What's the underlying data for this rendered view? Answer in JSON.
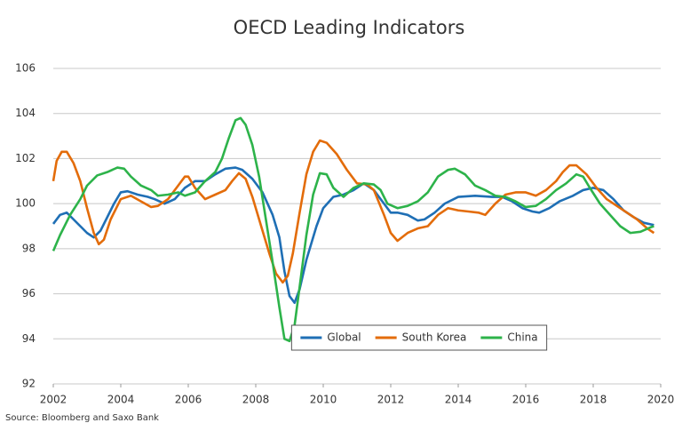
{
  "chart_data": {
    "type": "line",
    "title": "OECD Leading Indicators",
    "source": "Source: Bloomberg and Saxo Bank",
    "xlim": [
      2002,
      2020
    ],
    "xticks": [
      2002,
      2004,
      2006,
      2008,
      2010,
      2012,
      2014,
      2016,
      2018,
      2020
    ],
    "ylim": [
      92,
      106
    ],
    "yticks": [
      92,
      94,
      96,
      98,
      100,
      102,
      104,
      106
    ],
    "grid": true,
    "legend_position": "bottom",
    "series": [
      {
        "name": "Global",
        "color": "#1f6fb5",
        "x": [
          2002.0,
          2002.2,
          2002.4,
          2002.6,
          2002.8,
          2003.0,
          2003.2,
          2003.4,
          2003.6,
          2003.8,
          2004.0,
          2004.2,
          2004.5,
          2004.8,
          2005.0,
          2005.3,
          2005.6,
          2005.9,
          2006.2,
          2006.5,
          2006.8,
          2007.1,
          2007.4,
          2007.6,
          2007.9,
          2008.2,
          2008.5,
          2008.7,
          2008.85,
          2009.0,
          2009.15,
          2009.3,
          2009.5,
          2009.8,
          2010.0,
          2010.3,
          2010.6,
          2010.9,
          2011.2,
          2011.5,
          2011.8,
          2012.0,
          2012.2,
          2012.5,
          2012.8,
          2013.0,
          2013.3,
          2013.6,
          2014.0,
          2014.5,
          2015.0,
          2015.3,
          2015.6,
          2015.9,
          2016.2,
          2016.4,
          2016.7,
          2017.0,
          2017.4,
          2017.7,
          2018.0,
          2018.3,
          2018.6,
          2018.9,
          2019.2,
          2019.5,
          2019.8
        ],
        "values": [
          99.1,
          99.5,
          99.6,
          99.3,
          99.0,
          98.7,
          98.5,
          98.8,
          99.4,
          100.0,
          100.5,
          100.55,
          100.4,
          100.3,
          100.2,
          100.0,
          100.2,
          100.7,
          101.0,
          101.0,
          101.3,
          101.55,
          101.6,
          101.5,
          101.1,
          100.5,
          99.5,
          98.5,
          97.0,
          95.9,
          95.6,
          96.2,
          97.5,
          99.0,
          99.8,
          100.3,
          100.4,
          100.6,
          100.9,
          100.6,
          100.0,
          99.6,
          99.6,
          99.5,
          99.25,
          99.3,
          99.6,
          100.0,
          100.3,
          100.35,
          100.3,
          100.3,
          100.1,
          99.8,
          99.65,
          99.6,
          99.8,
          100.1,
          100.35,
          100.6,
          100.7,
          100.6,
          100.2,
          99.7,
          99.4,
          99.15,
          99.05
        ]
      },
      {
        "name": "South Korea",
        "color": "#e36c0a",
        "x": [
          2002.0,
          2002.1,
          2002.25,
          2002.4,
          2002.6,
          2002.8,
          2003.0,
          2003.2,
          2003.35,
          2003.5,
          2003.7,
          2004.0,
          2004.3,
          2004.6,
          2004.9,
          2005.1,
          2005.4,
          2005.7,
          2005.9,
          2006.0,
          2006.2,
          2006.5,
          2006.8,
          2007.1,
          2007.3,
          2007.5,
          2007.7,
          2007.9,
          2008.1,
          2008.4,
          2008.6,
          2008.8,
          2008.95,
          2009.1,
          2009.3,
          2009.5,
          2009.7,
          2009.9,
          2010.1,
          2010.4,
          2010.7,
          2011.0,
          2011.3,
          2011.5,
          2011.8,
          2012.0,
          2012.2,
          2012.5,
          2012.8,
          2013.1,
          2013.4,
          2013.7,
          2014.0,
          2014.3,
          2014.6,
          2014.8,
          2015.1,
          2015.4,
          2015.7,
          2016.0,
          2016.3,
          2016.6,
          2016.9,
          2017.1,
          2017.3,
          2017.5,
          2017.8,
          2018.1,
          2018.4,
          2018.7,
          2019.0,
          2019.3,
          2019.6,
          2019.8
        ],
        "values": [
          101.0,
          101.9,
          102.3,
          102.3,
          101.8,
          101.0,
          99.8,
          98.7,
          98.2,
          98.4,
          99.3,
          100.2,
          100.35,
          100.1,
          99.85,
          99.9,
          100.2,
          100.8,
          101.2,
          101.2,
          100.7,
          100.2,
          100.4,
          100.6,
          101.0,
          101.35,
          101.1,
          100.3,
          99.3,
          97.8,
          96.9,
          96.5,
          96.8,
          97.8,
          99.6,
          101.3,
          102.3,
          102.8,
          102.7,
          102.2,
          101.5,
          100.9,
          100.85,
          100.6,
          99.5,
          98.7,
          98.35,
          98.7,
          98.9,
          99.0,
          99.5,
          99.8,
          99.7,
          99.65,
          99.6,
          99.5,
          100.0,
          100.4,
          100.5,
          100.5,
          100.35,
          100.6,
          101.0,
          101.4,
          101.7,
          101.7,
          101.3,
          100.7,
          100.2,
          99.9,
          99.6,
          99.3,
          98.9,
          98.7
        ]
      },
      {
        "name": "China",
        "color": "#2db34a",
        "x": [
          2002.0,
          2002.2,
          2002.5,
          2002.8,
          2003.0,
          2003.3,
          2003.6,
          2003.9,
          2004.1,
          2004.3,
          2004.6,
          2004.9,
          2005.1,
          2005.4,
          2005.7,
          2005.9,
          2006.2,
          2006.5,
          2006.8,
          2007.0,
          2007.2,
          2007.4,
          2007.55,
          2007.7,
          2007.9,
          2008.1,
          2008.3,
          2008.5,
          2008.7,
          2008.85,
          2009.0,
          2009.15,
          2009.3,
          2009.5,
          2009.7,
          2009.9,
          2010.1,
          2010.3,
          2010.6,
          2010.9,
          2011.2,
          2011.5,
          2011.7,
          2011.9,
          2012.2,
          2012.5,
          2012.8,
          2013.1,
          2013.4,
          2013.7,
          2013.9,
          2014.2,
          2014.5,
          2014.8,
          2015.1,
          2015.4,
          2015.7,
          2016.0,
          2016.3,
          2016.6,
          2016.9,
          2017.2,
          2017.5,
          2017.7,
          2017.9,
          2018.2,
          2018.5,
          2018.8,
          2019.1,
          2019.4,
          2019.7,
          2019.8
        ],
        "values": [
          97.9,
          98.6,
          99.5,
          100.2,
          100.8,
          101.25,
          101.4,
          101.6,
          101.55,
          101.2,
          100.8,
          100.6,
          100.35,
          100.4,
          100.5,
          100.35,
          100.5,
          101.0,
          101.4,
          102.0,
          102.9,
          103.7,
          103.8,
          103.5,
          102.6,
          101.2,
          99.3,
          97.4,
          95.4,
          94.0,
          93.9,
          94.6,
          96.3,
          98.6,
          100.4,
          101.35,
          101.3,
          100.7,
          100.3,
          100.7,
          100.9,
          100.85,
          100.6,
          100.0,
          99.8,
          99.9,
          100.1,
          100.5,
          101.2,
          101.5,
          101.55,
          101.3,
          100.8,
          100.6,
          100.35,
          100.3,
          100.1,
          99.85,
          99.9,
          100.2,
          100.6,
          100.9,
          101.3,
          101.2,
          100.7,
          100.0,
          99.5,
          99.0,
          98.7,
          98.75,
          98.95,
          99.0
        ]
      }
    ]
  }
}
